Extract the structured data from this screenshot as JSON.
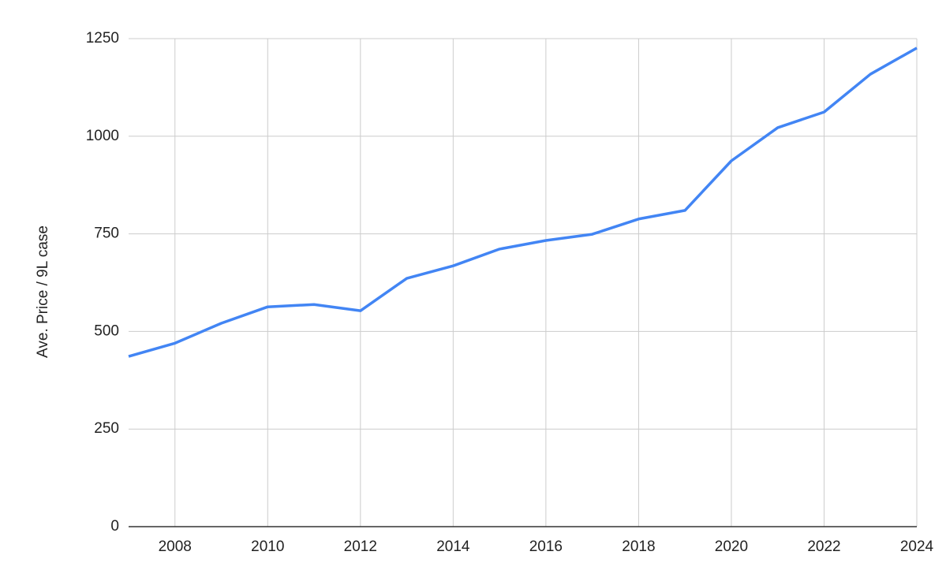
{
  "chart_data": {
    "type": "line",
    "y_label": "Ave. Price / 9L case",
    "x": [
      2007,
      2008,
      2009,
      2010,
      2011,
      2012,
      2013,
      2014,
      2015,
      2016,
      2017,
      2018,
      2019,
      2020,
      2021,
      2022,
      2023,
      2024
    ],
    "series": [
      {
        "name": "Ave. Price / 9L case",
        "color": "#4285f4",
        "values": [
          436,
          470,
          521,
          563,
          569,
          553,
          636,
          668,
          711,
          733,
          749,
          788,
          810,
          937,
          1022,
          1062,
          1159,
          1226
        ]
      }
    ],
    "xlim": [
      2007,
      2024
    ],
    "xticks": [
      2008,
      2010,
      2012,
      2014,
      2016,
      2018,
      2020,
      2022,
      2024
    ],
    "ylim": [
      0,
      1250
    ],
    "yticks": [
      0,
      250,
      500,
      750,
      1000,
      1250
    ],
    "grid": true
  }
}
